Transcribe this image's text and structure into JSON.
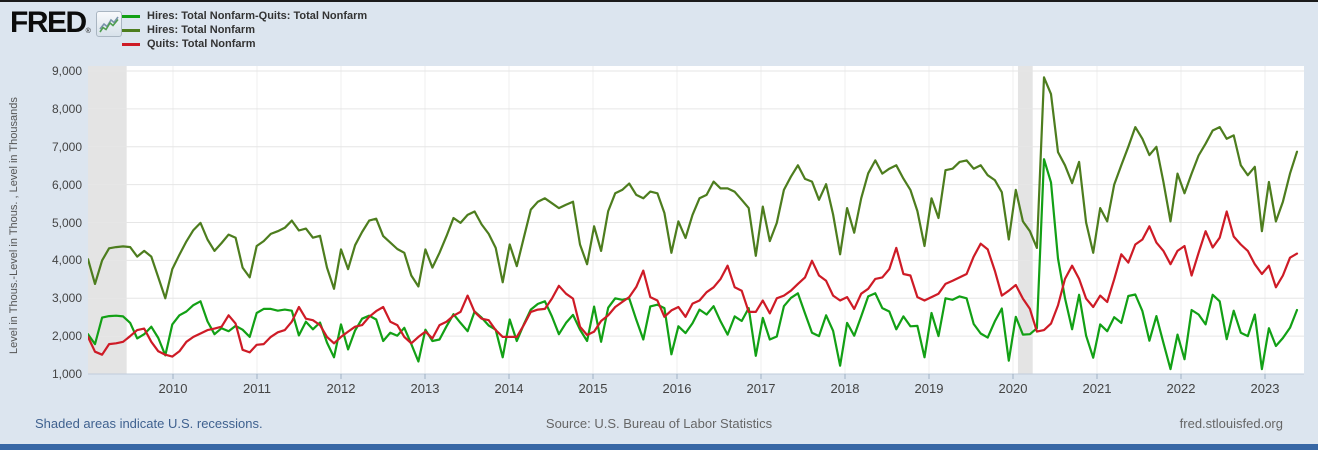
{
  "header": {
    "brand": "FRED",
    "registered": "®",
    "icon": "fred-sparkline-icon"
  },
  "legend": {
    "items": [
      {
        "label": "Hires: Total Nonfarm-Quits: Total Nonfarm",
        "color": "#12A015"
      },
      {
        "label": "Hires: Total Nonfarm",
        "color": "#4D7D1E"
      },
      {
        "label": "Quits: Total Nonfarm",
        "color": "#CE1B26"
      }
    ]
  },
  "y_axis": {
    "title": "Level in Thous.-Level in Thous. , Level in Thousands",
    "tick_labels": [
      "9,000",
      "8,000",
      "7,000",
      "6,000",
      "5,000",
      "4,000",
      "3,000",
      "2,000",
      "1,000"
    ],
    "min": 1000,
    "max": 9000
  },
  "x_axis": {
    "tick_labels": [
      "2010",
      "2011",
      "2012",
      "2013",
      "2014",
      "2015",
      "2016",
      "2017",
      "2018",
      "2019",
      "2020",
      "2021",
      "2022",
      "2023"
    ]
  },
  "footer": {
    "left_note": "Shaded areas indicate U.S. recessions.",
    "source": "Source: U.S. Bureau of Labor Statistics",
    "site": "fred.stlouisfed.org"
  },
  "colors": {
    "background": "#DCE5EF",
    "plot_background": "#FFFFFF",
    "recession_band": "#E4E4E4",
    "grid": "#E6E6E6",
    "year_grid": "#EFEFEF",
    "axis_line": "#BFCCDB",
    "tick_mark": "#9FB1C4",
    "footer_link": "#3F618F",
    "footer_text": "#666666",
    "bottom_bar": "#3767A5"
  },
  "chart_data": {
    "type": "line",
    "frequency": "monthly",
    "x_start": "2009-01",
    "x_end": "2023-05",
    "ylim": [
      1000,
      9000
    ],
    "y_unit": "Level in Thousands",
    "grid": "horizontal",
    "legend_position": "top-left",
    "shaded_recessions": [
      {
        "label": "2008-09 recession (tail)",
        "start_index": 0,
        "end_index": 5.5
      },
      {
        "label": "2020 recession",
        "start_index": 132.3,
        "end_index": 134.4
      }
    ],
    "series": [
      {
        "name": "Hires: Total Nonfarm-Quits: Total Nonfarm",
        "color": "#12A015",
        "values": [
          2050,
          1790,
          2490,
          2530,
          2540,
          2520,
          2350,
          1940,
          2050,
          2250,
          1950,
          1490,
          2310,
          2550,
          2650,
          2820,
          2920,
          2390,
          2050,
          2210,
          2130,
          2270,
          2170,
          1980,
          2610,
          2720,
          2720,
          2670,
          2700,
          2670,
          2020,
          2380,
          2180,
          2360,
          1830,
          1440,
          2310,
          1650,
          2150,
          2460,
          2540,
          2440,
          1870,
          2090,
          2010,
          2220,
          1790,
          1330,
          2170,
          1870,
          1910,
          2260,
          2580,
          2350,
          2130,
          2650,
          2490,
          2280,
          2170,
          1440,
          2440,
          1870,
          2310,
          2700,
          2850,
          2920,
          2520,
          2050,
          2350,
          2560,
          2170,
          1870,
          2780,
          1850,
          2750,
          3000,
          2960,
          3000,
          2430,
          1910,
          2785,
          2830,
          2740,
          1520,
          2260,
          2080,
          2340,
          2700,
          2570,
          2790,
          2390,
          2040,
          2520,
          2400,
          2740,
          1480,
          2480,
          1910,
          1990,
          2790,
          3010,
          3130,
          2600,
          2090,
          2000,
          2550,
          2140,
          1220,
          2350,
          2010,
          2520,
          3050,
          3130,
          2740,
          2650,
          2180,
          2520,
          2260,
          2270,
          1440,
          2610,
          2000,
          3000,
          2960,
          3050,
          3000,
          2320,
          2070,
          1960,
          2390,
          2730,
          1350,
          2510,
          2040,
          2050,
          2210,
          6670,
          6060,
          4050,
          3000,
          2180,
          3090,
          2010,
          1430,
          2310,
          2130,
          2500,
          2350,
          3060,
          3100,
          2660,
          1880,
          2530,
          1825,
          1130,
          2040,
          1390,
          2690,
          2570,
          2310,
          3090,
          2920,
          1920,
          2670,
          2090,
          2000,
          2570,
          1130,
          2210,
          1740,
          1950,
          2220,
          2690
        ]
      },
      {
        "name": "Hires: Total Nonfarm",
        "color": "#4D7D1E",
        "values": [
          4030,
          3380,
          4000,
          4320,
          4350,
          4370,
          4350,
          4100,
          4250,
          4100,
          3550,
          3000,
          3770,
          4150,
          4500,
          4800,
          4990,
          4550,
          4250,
          4460,
          4680,
          4600,
          3810,
          3550,
          4380,
          4510,
          4700,
          4770,
          4860,
          5050,
          4790,
          4840,
          4600,
          4650,
          3810,
          3250,
          4290,
          3770,
          4400,
          4750,
          5050,
          5100,
          4640,
          4470,
          4300,
          4200,
          3600,
          3310,
          4290,
          3810,
          4200,
          4640,
          5120,
          4990,
          5200,
          5290,
          4950,
          4700,
          4330,
          3420,
          4420,
          3850,
          4600,
          5340,
          5550,
          5640,
          5510,
          5380,
          5470,
          5550,
          4420,
          3900,
          4900,
          4250,
          5300,
          5770,
          5860,
          6030,
          5730,
          5640,
          5815,
          5770,
          5250,
          4200,
          5030,
          4590,
          5200,
          5640,
          5730,
          6080,
          5900,
          5900,
          5810,
          5600,
          5380,
          4120,
          5420,
          4510,
          4990,
          5860,
          6210,
          6510,
          6150,
          6080,
          5600,
          6010,
          5210,
          4160,
          5380,
          4730,
          5640,
          6300,
          6640,
          6290,
          6420,
          6510,
          6160,
          5860,
          5300,
          4380,
          5640,
          5120,
          6380,
          6420,
          6600,
          6640,
          6420,
          6510,
          6250,
          6120,
          5800,
          4550,
          5860,
          5030,
          4770,
          4330,
          8830,
          8390,
          6860,
          6510,
          6040,
          6600,
          5000,
          4200,
          5380,
          5030,
          6000,
          6510,
          7000,
          7520,
          7210,
          6780,
          7000,
          6075,
          5030,
          6290,
          5770,
          6290,
          6770,
          7080,
          7430,
          7520,
          7210,
          7300,
          6510,
          6250,
          6470,
          4770,
          6070,
          5030,
          5550,
          6290,
          6870
        ]
      },
      {
        "name": "Quits: Total Nonfarm",
        "color": "#CE1B26",
        "values": [
          1980,
          1590,
          1510,
          1790,
          1810,
          1850,
          2000,
          2160,
          2200,
          1850,
          1600,
          1510,
          1460,
          1600,
          1850,
          1980,
          2070,
          2160,
          2200,
          2250,
          2550,
          2330,
          1640,
          1570,
          1770,
          1790,
          1980,
          2100,
          2160,
          2380,
          2770,
          2460,
          2420,
          2290,
          1980,
          1810,
          1980,
          2120,
          2250,
          2290,
          2510,
          2660,
          2770,
          2380,
          2290,
          1980,
          1810,
          1980,
          2120,
          1940,
          2290,
          2380,
          2540,
          2640,
          3070,
          2640,
          2460,
          2420,
          2160,
          1980,
          1980,
          1980,
          2290,
          2640,
          2700,
          2720,
          2990,
          3330,
          3120,
          2990,
          2250,
          2030,
          2120,
          2400,
          2550,
          2770,
          2900,
          3030,
          3300,
          3730,
          3030,
          2940,
          2510,
          2680,
          2770,
          2510,
          2860,
          2940,
          3160,
          3290,
          3510,
          3860,
          3290,
          3200,
          2640,
          2640,
          2940,
          2600,
          3000,
          3070,
          3200,
          3380,
          3550,
          3990,
          3600,
          3460,
          3070,
          2940,
          3030,
          2720,
          3120,
          3250,
          3510,
          3550,
          3770,
          4330,
          3640,
          3600,
          3030,
          2940,
          3030,
          3120,
          3380,
          3460,
          3550,
          3640,
          4100,
          4440,
          4290,
          3730,
          3070,
          3200,
          3350,
          2990,
          2720,
          2120,
          2160,
          2330,
          2810,
          3510,
          3860,
          3510,
          2990,
          2770,
          3070,
          2900,
          3500,
          4160,
          3940,
          4420,
          4550,
          4900,
          4470,
          4250,
          3900,
          4250,
          4380,
          3600,
          4200,
          4770,
          4340,
          4600,
          5290,
          4630,
          4420,
          4250,
          3900,
          3640,
          3860,
          3290,
          3600,
          4070,
          4180
        ]
      }
    ]
  }
}
